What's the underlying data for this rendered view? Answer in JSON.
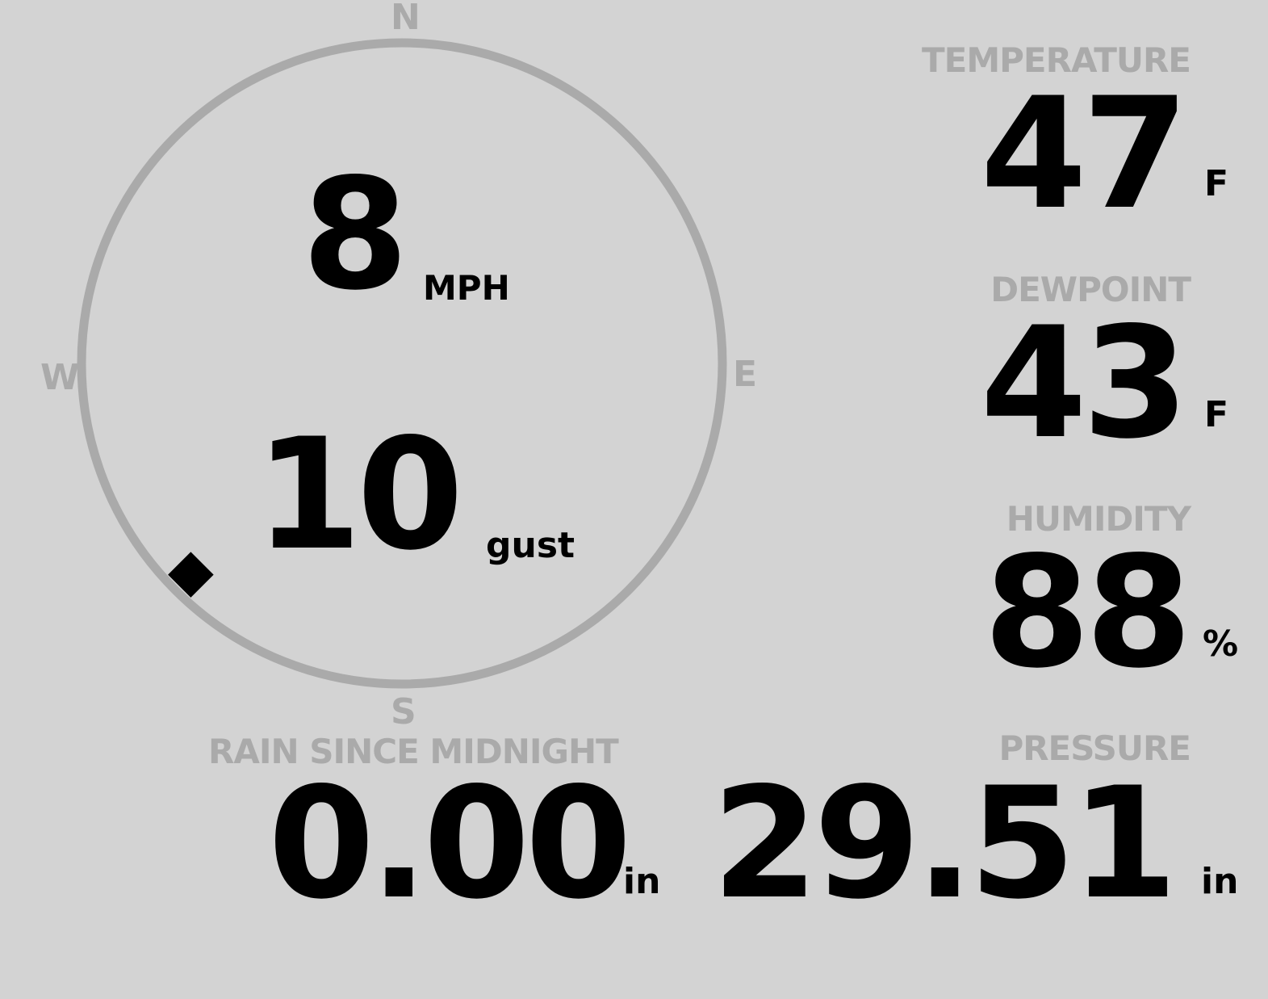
{
  "colors": {
    "background": "#d3d3d3",
    "label": "#aaaaaa",
    "value": "#000000"
  },
  "wind": {
    "speed": "8",
    "speed_unit": "MPH",
    "gust": "10",
    "gust_unit": "gust",
    "direction_degrees": 225,
    "compass": {
      "n": "N",
      "e": "E",
      "s": "S",
      "w": "W"
    }
  },
  "temperature": {
    "label": "TEMPERATURE",
    "value": "47",
    "unit": "F"
  },
  "dewpoint": {
    "label": "DEWPOINT",
    "value": "43",
    "unit": "F"
  },
  "humidity": {
    "label": "HUMIDITY",
    "value": "88",
    "unit": "%"
  },
  "rain": {
    "label": "RAIN SINCE MIDNIGHT",
    "value": "0.00",
    "unit": "in"
  },
  "pressure": {
    "label": "PRESSURE",
    "value": "29.51",
    "unit": "in"
  }
}
